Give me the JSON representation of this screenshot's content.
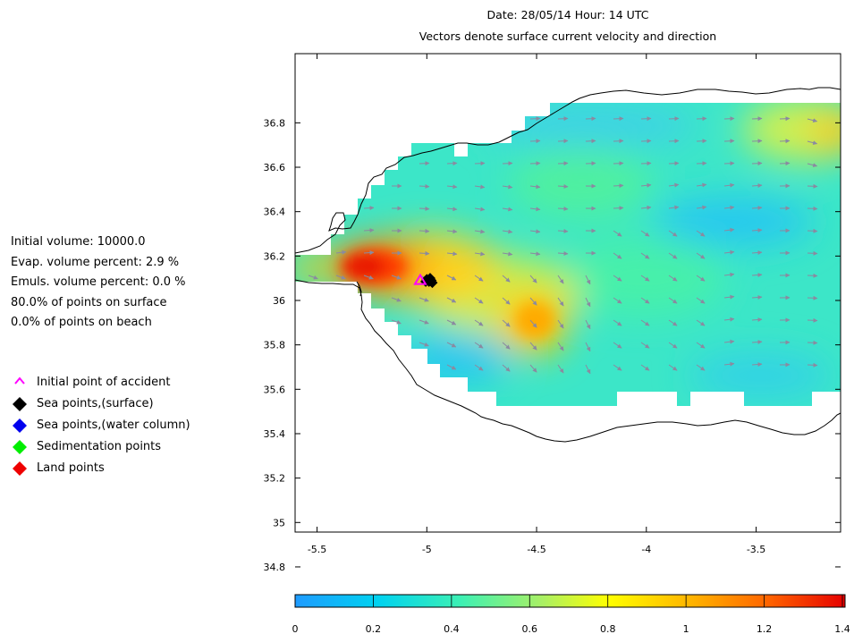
{
  "header": {
    "title_line1": "Date: 28/05/14 Hour: 14 UTC",
    "title_line2": "Vectors denote surface current velocity and direction"
  },
  "stats": [
    "Initial volume: 10000.0",
    "Evap. volume percent: 2.9 %",
    "Emuls. volume percent: 0.0 %",
    "80.0% of points on surface",
    "0.0% of points on beach"
  ],
  "legend": [
    {
      "label": "Initial point of accident",
      "symbol": "caret",
      "color": "#ff00ff"
    },
    {
      "label": "Sea points,(surface)",
      "symbol": "diamond",
      "color": "#000000"
    },
    {
      "label": "Sea points,(water column)",
      "symbol": "diamond",
      "color": "#0000ee"
    },
    {
      "label": "Sedimentation points",
      "symbol": "diamond",
      "color": "#00ee00"
    },
    {
      "label": "Land points",
      "symbol": "diamond",
      "color": "#ee0000"
    }
  ],
  "map": {
    "x_ticks": [
      "-5.5",
      "-5",
      "-4.5",
      "-4",
      "-3.5"
    ],
    "y_ticks": [
      "36.8",
      "36.6",
      "36.4",
      "36.2",
      "36",
      "35.8",
      "35.6",
      "35.4",
      "35.2",
      "35",
      "34.8"
    ],
    "accident_point": {
      "lon": -5.03,
      "lat": 36.09
    },
    "surface_points": [
      {
        "lon": -5.0,
        "lat": 36.095
      },
      {
        "lon": -4.99,
        "lat": 36.085
      },
      {
        "lon": -4.98,
        "lat": 36.09
      },
      {
        "lon": -4.975,
        "lat": 36.08
      },
      {
        "lon": -4.985,
        "lat": 36.1
      },
      {
        "lon": -5.005,
        "lat": 36.085
      }
    ],
    "arrow_color": "#8a8aa0",
    "coast_color": "#000000"
  },
  "colorbar": {
    "ticks": [
      "0",
      "0.2",
      "0.4",
      "0.6",
      "0.8",
      "1",
      "1.2",
      "1.4"
    ],
    "min": 0,
    "max": 1.4,
    "colors": [
      "#1f9bff",
      "#00d2f0",
      "#3cf0b4",
      "#aaf064",
      "#ffff00",
      "#ffb400",
      "#ff6400",
      "#e60000"
    ]
  }
}
